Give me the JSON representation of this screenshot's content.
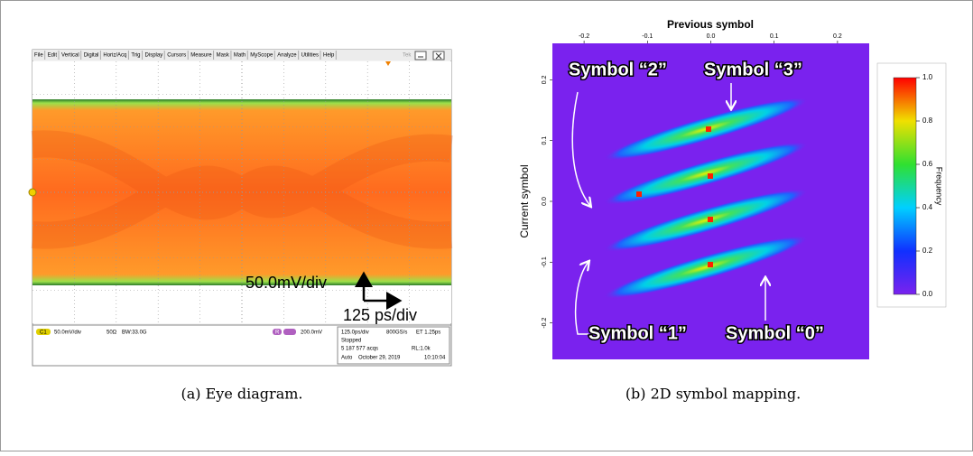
{
  "eye_diagram": {
    "menu": [
      "File",
      "Edit",
      "Vertical",
      "Digital",
      "Horiz/Acq",
      "Trig",
      "Display",
      "Cursors",
      "Measure",
      "Mask",
      "Math",
      "MyScope",
      "Analyze",
      "Utilities",
      "Help"
    ],
    "brand": "Tek",
    "scale_labels": {
      "vertical": "50.0mV/div",
      "horizontal": "125 ps/div"
    },
    "status": {
      "channel": "C1",
      "vertical_scale": "50.0mV/div",
      "impedance": "50Ω",
      "bandwidth": "BW:33.0G",
      "trigger_source": "R",
      "trigger_level": "200.0mV",
      "timebase": "125.0ps/div",
      "sample_rate": "800GS/s",
      "resolution": "ET  1.25ps",
      "state": "Stopped",
      "acquisitions": "5 187 577 acqs",
      "record_length": "RL:1.0k",
      "mode": "Auto",
      "date": "October 29, 2019",
      "time": "10:10:04"
    },
    "caption": "(a) Eye diagram."
  },
  "chart_data": {
    "type": "heatmap",
    "x_label": "Previous symbol",
    "y_label": "Current symbol",
    "xlim": [
      -0.25,
      0.25
    ],
    "xticks": [
      -0.2,
      -0.1,
      {
        "value": 0,
        "label": "0.0"
      },
      0.1,
      0.2
    ],
    "ylim": [
      -0.26,
      0.26
    ],
    "yticks": [
      -0.2,
      -0.1,
      {
        "value": 0,
        "label": "0.0"
      },
      0.1,
      0.2
    ],
    "background_color": "#7a22ee",
    "colorbar": {
      "label": "Frequency",
      "lim": [
        0,
        1
      ],
      "ticks": [
        {
          "value": 0,
          "label": "0.0"
        },
        0.2,
        0.4,
        0.6,
        0.8,
        {
          "value": 1,
          "label": "1.0"
        }
      ]
    },
    "annotations": [
      "Symbol “2”",
      "Symbol “3”",
      "Symbol “1”",
      "Symbol “0”"
    ],
    "caption": "(b) 2D symbol mapping."
  }
}
